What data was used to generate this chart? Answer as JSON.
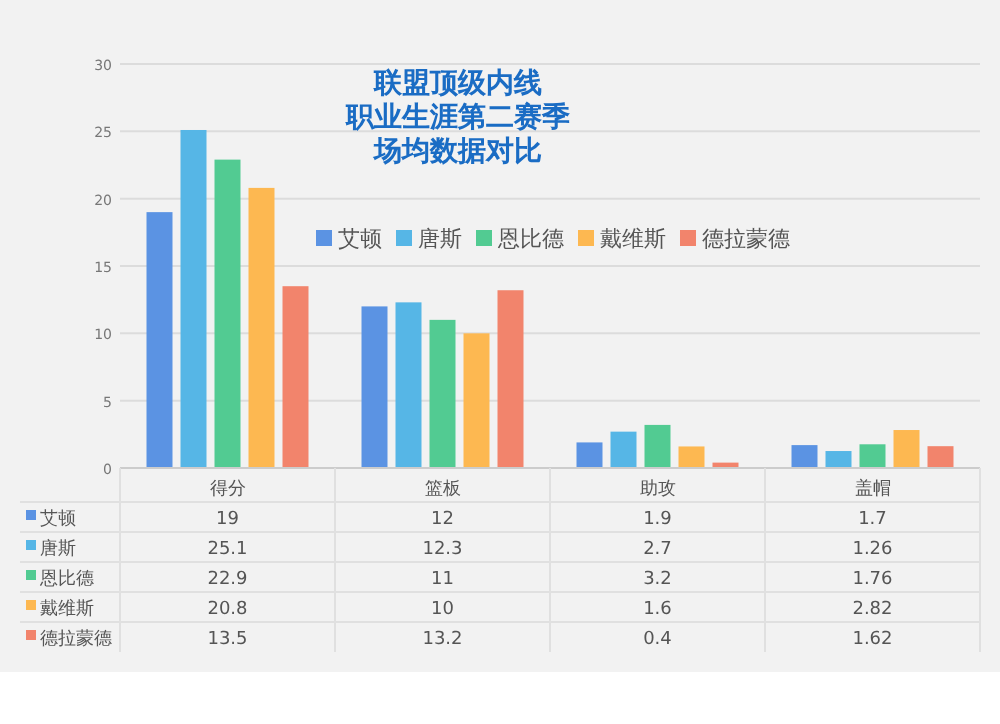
{
  "chart_data": {
    "type": "bar",
    "title": "联盟顶级内线",
    "subtitle": "职业生涯第二赛季场均数据对比",
    "categories": [
      "得分",
      "篮板",
      "助攻",
      "盖帽"
    ],
    "series": [
      {
        "name": "艾顿",
        "color": "#5b93e3",
        "values": [
          19,
          12,
          1.9,
          1.7
        ]
      },
      {
        "name": "唐斯",
        "color": "#56b6e6",
        "values": [
          25.1,
          12.3,
          2.7,
          1.26
        ]
      },
      {
        "name": "恩比德",
        "color": "#52cb92",
        "values": [
          22.9,
          11,
          3.2,
          1.76
        ]
      },
      {
        "name": "戴维斯",
        "color": "#fdb851",
        "values": [
          20.8,
          10,
          1.6,
          2.82
        ]
      },
      {
        "name": "德拉蒙德",
        "color": "#f2846c",
        "values": [
          13.5,
          13.2,
          0.4,
          1.62
        ]
      }
    ],
    "ylim": [
      0,
      30
    ],
    "yticks": [
      0,
      5,
      10,
      15,
      20,
      25,
      30
    ],
    "grid": "y",
    "legend": "top right",
    "data_labels": true
  }
}
